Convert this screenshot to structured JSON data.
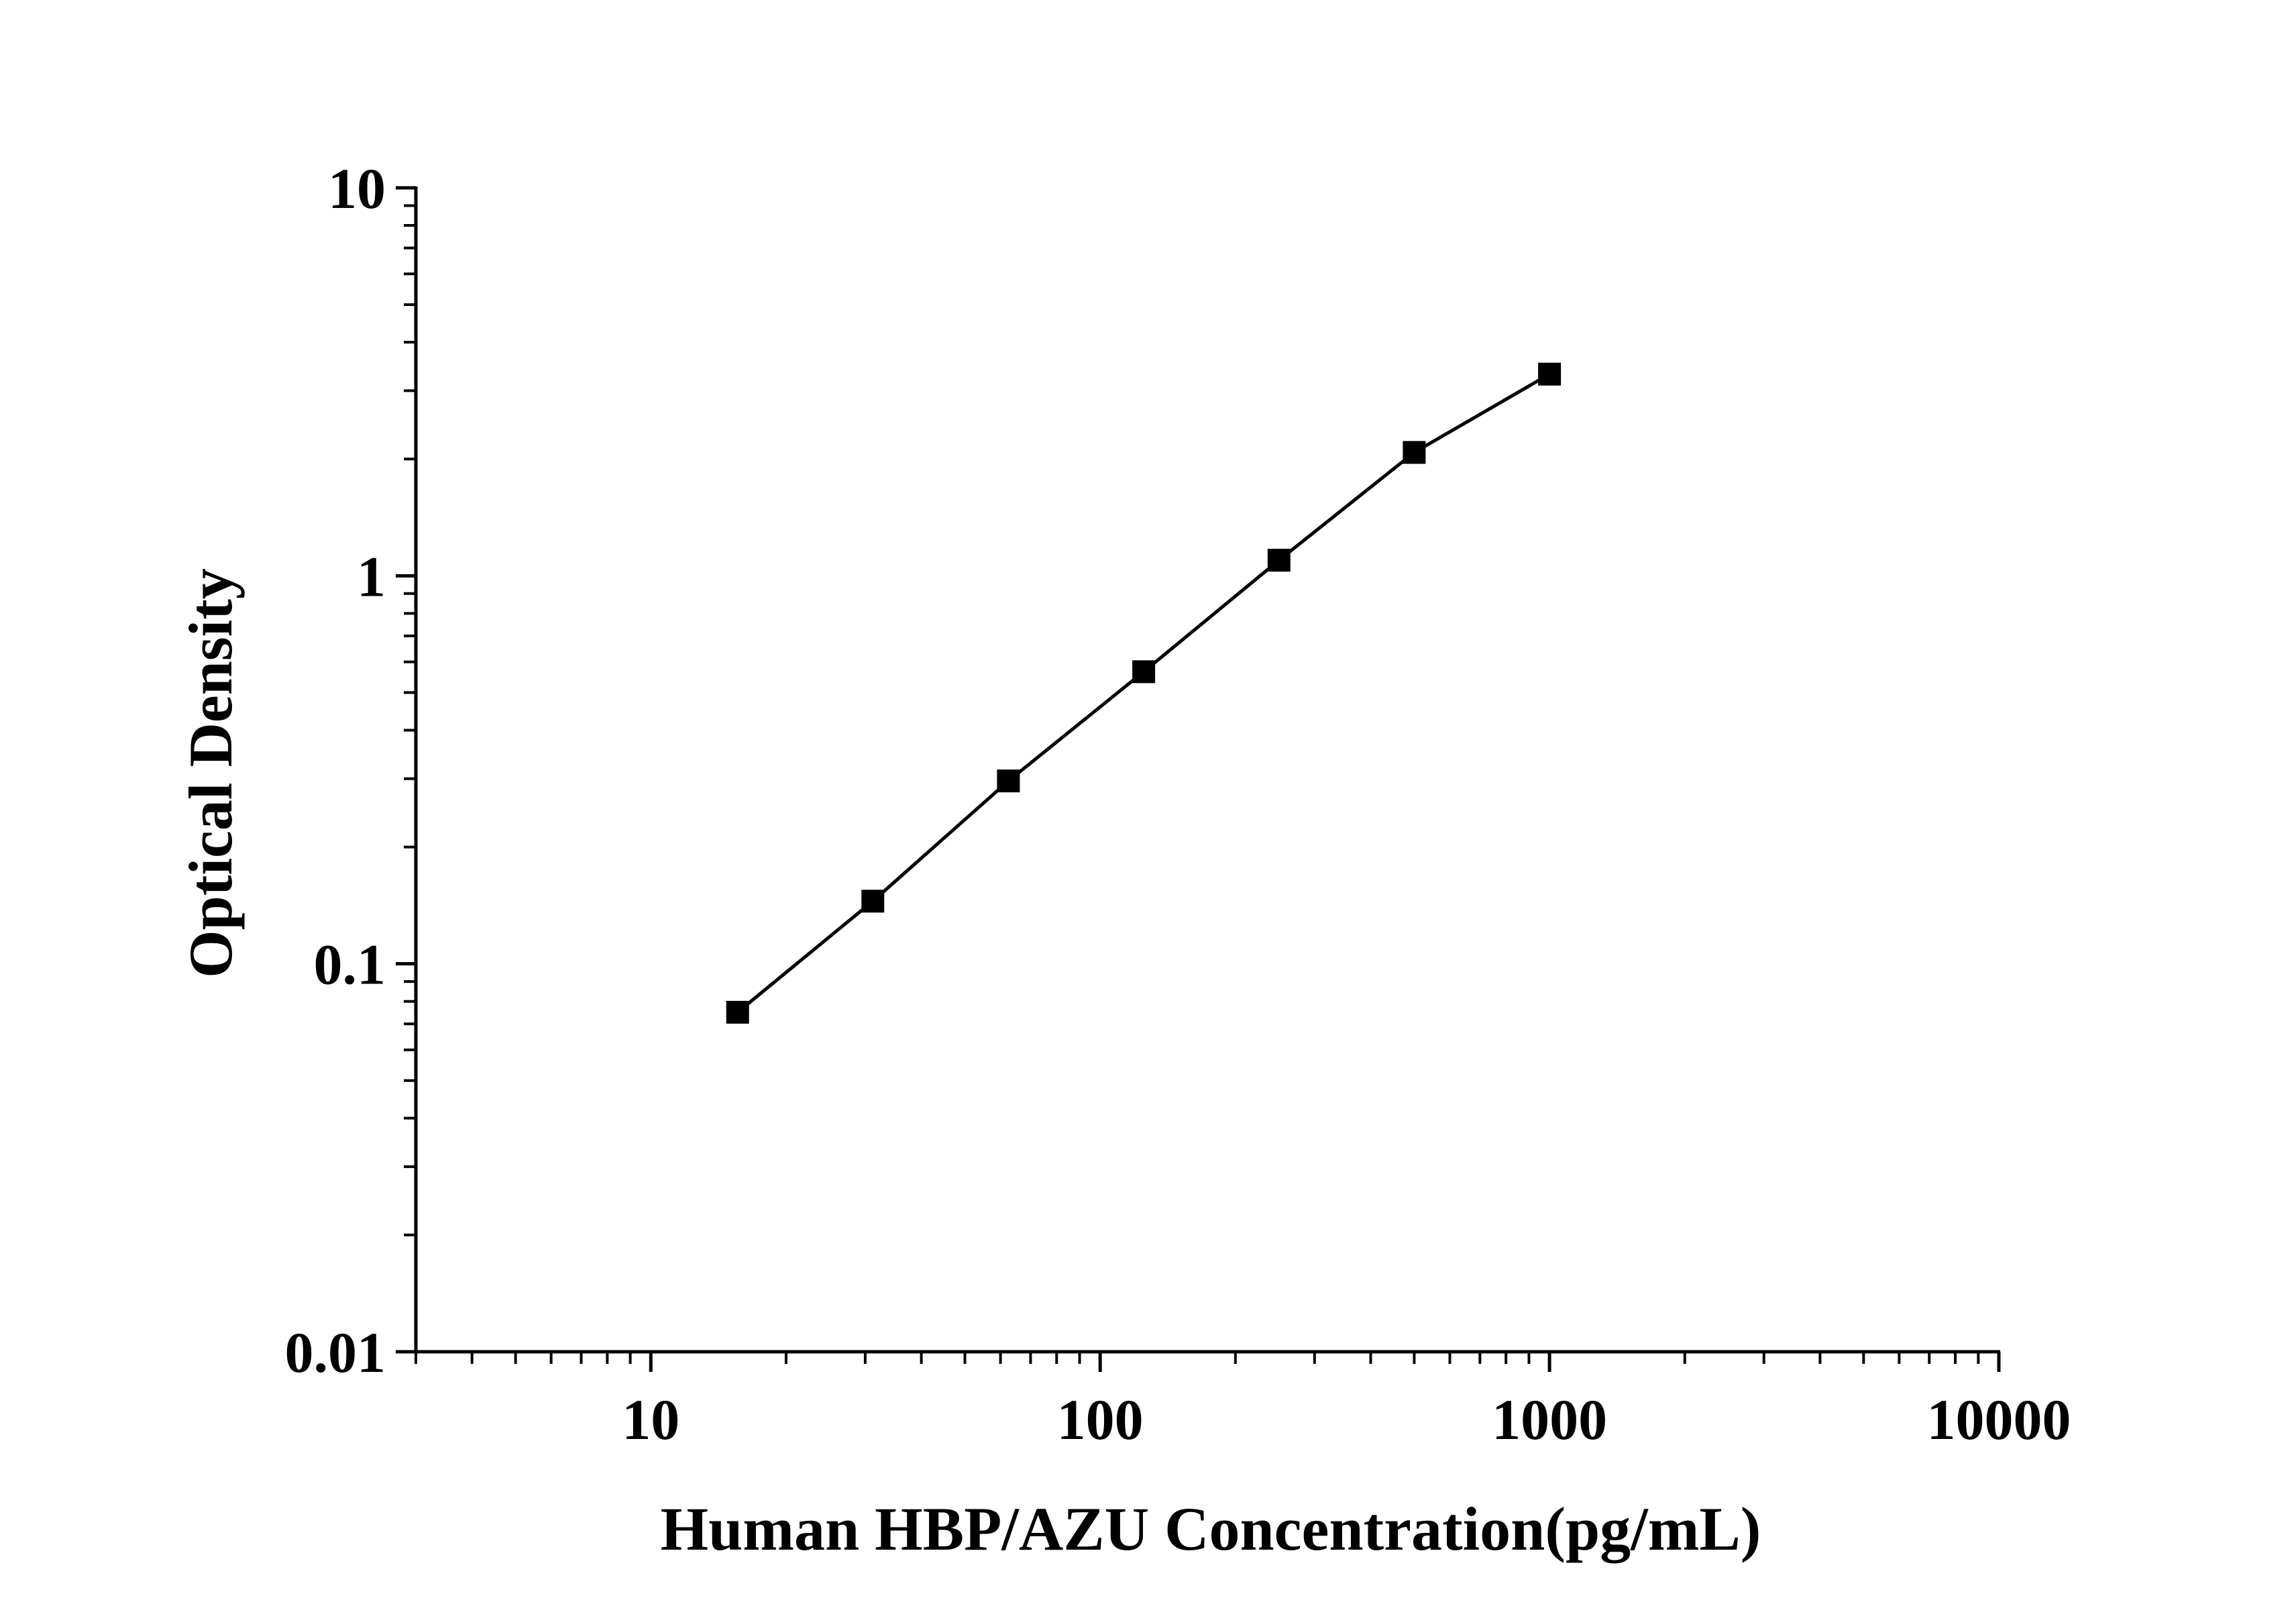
{
  "chart_data": {
    "type": "line",
    "title": "",
    "xlabel": "Human HBP/AZU Concentration(pg/mL)",
    "ylabel": "Optical Density",
    "xscale": "log",
    "yscale": "log",
    "xlim": [
      3,
      10000
    ],
    "ylim": [
      0.01,
      10
    ],
    "x_ticks": [
      10,
      100,
      1000,
      10000
    ],
    "x_tick_labels": [
      "10",
      "100",
      "1000",
      "10000"
    ],
    "y_ticks": [
      0.01,
      0.1,
      1,
      10
    ],
    "y_tick_labels": [
      "0.01",
      "0.1",
      "1",
      "10"
    ],
    "grid": false,
    "legend": "none",
    "series": [
      {
        "marker": "square",
        "color": "#000000",
        "x": [
          15.6,
          31.2,
          62.5,
          125,
          250,
          500,
          1000
        ],
        "y": [
          0.075,
          0.145,
          0.296,
          0.566,
          1.097,
          2.08,
          3.31
        ]
      }
    ]
  }
}
